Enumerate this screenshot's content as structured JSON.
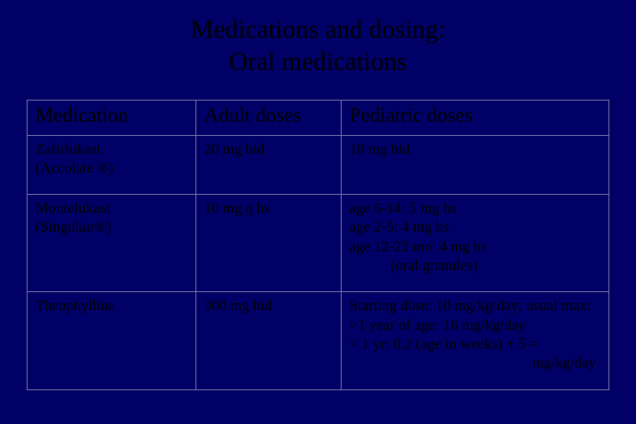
{
  "slide": {
    "background_color": "#000066",
    "text_color": "#000000",
    "border_color": "#7a7aa8",
    "font_family": "Times New Roman",
    "title_fontsize": 33,
    "header_fontsize": 26,
    "cell_fontsize": 19,
    "title_line1": "Medications and dosing:",
    "title_line2": "Oral medications",
    "table": {
      "type": "table",
      "column_widths_pct": [
        29,
        25,
        46
      ],
      "columns": [
        "Medication",
        "Adult doses",
        "Pediatric doses"
      ],
      "rows": [
        {
          "medication_l1": "Zafirlukast",
          "medication_l2": "(Accolate ®)",
          "adult": "20 mg bid",
          "pediatric_l1": "10 mg bid",
          "pediatric_l2": "",
          "pediatric_l3": "",
          "pediatric_l4": "",
          "pediatric_rt": ""
        },
        {
          "medication_l1": "Montelukast",
          "medication_l2": " (Singulair®)",
          "adult": "10 mg q hs",
          "pediatric_l1": "age 6-14:  5 mg hs",
          "pediatric_l2": "age 2-5:   4 mg hs",
          "pediatric_l3": "age 12-23 mo:  4 mg hs",
          "pediatric_l4": "(oral granules)",
          "pediatric_rt": ""
        },
        {
          "medication_l1": "Theophylline",
          "medication_l2": "",
          "adult": "300 mg bid",
          "pediatric_l1": "Starting dose: 10 mg/kg/day; usual max:",
          "pediatric_l2": ">1 year of age: 16 mg/kg/day",
          "pediatric_l3": "< 1 yr: 0.2 (age in weeks) + 5 =",
          "pediatric_l4": "",
          "pediatric_rt": "mg/kg/day"
        }
      ]
    }
  }
}
